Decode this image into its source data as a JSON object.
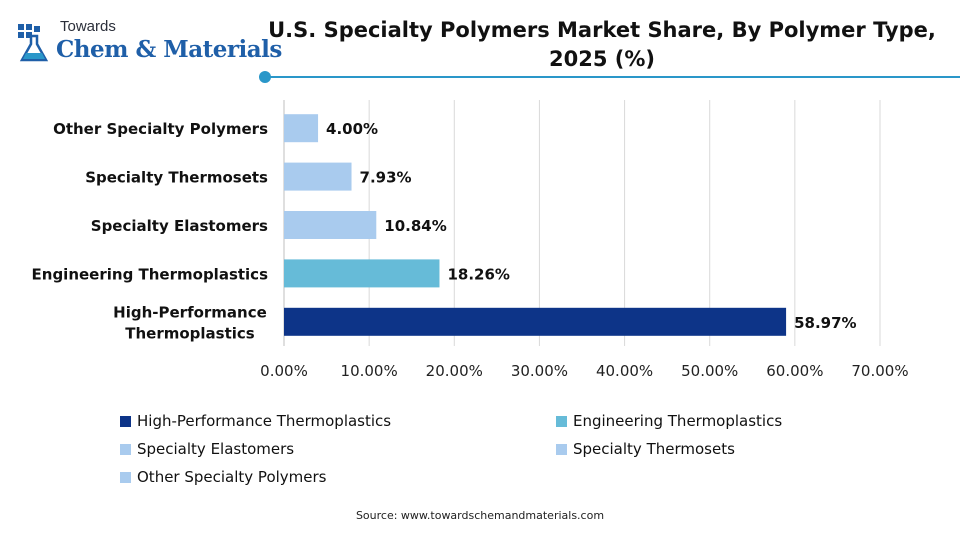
{
  "logo": {
    "top": "Towards",
    "main": "Chem & Materials",
    "icon": "flask-icon"
  },
  "chart_data": {
    "type": "bar",
    "orientation": "horizontal",
    "title": "U.S. Specialty Polymers Market Share, By Polymer Type, 2025 (%)",
    "title_lines": [
      "U.S. Specialty Polymers Market Share, By Polymer Type,",
      "2025 (%)"
    ],
    "categories": [
      [
        "High-Performance",
        "Thermoplastics"
      ],
      [
        "Engineering Thermoplastics"
      ],
      [
        "Specialty Elastomers"
      ],
      [
        "Specialty Thermosets"
      ],
      [
        "Other Specialty Polymers"
      ]
    ],
    "values": [
      58.97,
      18.26,
      10.84,
      7.93,
      4.0
    ],
    "value_labels": [
      "58.97%",
      "18.26%",
      "10.84%",
      "7.93%",
      "4.00%"
    ],
    "colors": [
      "#0d3488",
      "#66bbd8",
      "#a9cbee",
      "#a9cbee",
      "#a9cbee"
    ],
    "xlim": [
      0,
      70
    ],
    "xticks": [
      "0.00%",
      "10.00%",
      "20.00%",
      "30.00%",
      "40.00%",
      "50.00%",
      "60.00%",
      "70.00%"
    ],
    "grid": true,
    "legend_position": "bottom",
    "legend": [
      {
        "label": "High-Performance Thermoplastics",
        "color": "#0d3488"
      },
      {
        "label": "Engineering Thermoplastics",
        "color": "#66bbd8"
      },
      {
        "label": "Specialty Elastomers",
        "color": "#a9cbee"
      },
      {
        "label": "Specialty Thermosets",
        "color": "#a9cbee"
      },
      {
        "label": "Other Specialty Polymers",
        "color": "#a9cbee"
      }
    ]
  },
  "source": "Source: www.towardschemandmaterials.com",
  "accent_color": "#2a97c9"
}
